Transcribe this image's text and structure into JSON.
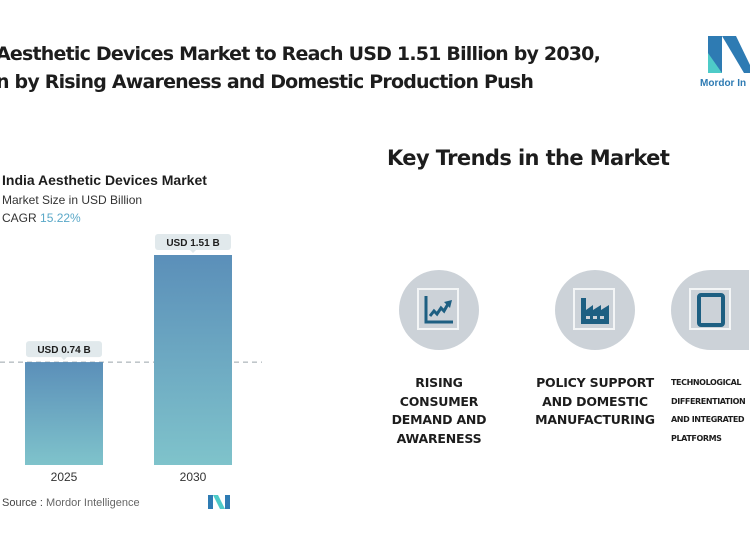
{
  "header": {
    "title_line1": "Aesthetic Devices Market to Reach USD 1.51 Billion by 2030,",
    "title_line2": "n by Rising Awareness and Domestic Production Push",
    "logo_text": "Mordor In"
  },
  "chart_data": {
    "type": "bar",
    "title": "India Aesthetic Devices Market",
    "subtitle": "Market Size in USD Billion",
    "cagr_label": "CAGR",
    "cagr_value": "15.22%",
    "categories": [
      "2025",
      "2030"
    ],
    "values": [
      0.74,
      1.51
    ],
    "data_labels": [
      "USD 0.74 B",
      "USD 1.51 B"
    ],
    "xlabel": "",
    "ylabel": "Market Size in USD Billion",
    "ylim": [
      0,
      1.6
    ],
    "grid": false,
    "reference_line": "dashed line at 2025 value",
    "colors": {
      "bar_top": "#5b8fb9",
      "bar_bottom": "#7fc3cb",
      "label_bg": "#e1e9ec"
    }
  },
  "footer": {
    "source_label": "Source :",
    "source_value": "Mordor Intelligence"
  },
  "trends": {
    "title": "Key Trends in the Market",
    "items": [
      {
        "icon": "trend-chart-icon",
        "lines": [
          "RISING",
          "CONSUMER",
          "DEMAND AND",
          "AWARENESS"
        ]
      },
      {
        "icon": "factory-icon",
        "lines": [
          "POLICY SUPPORT",
          "AND DOMESTIC",
          "MANUFACTURING"
        ]
      },
      {
        "icon": "tablet-icon",
        "lines": [
          "TECHNOLOGICAL",
          "DIFFERENTIATION",
          "AND INTEGRATED",
          "PLATFORMS"
        ]
      }
    ]
  }
}
